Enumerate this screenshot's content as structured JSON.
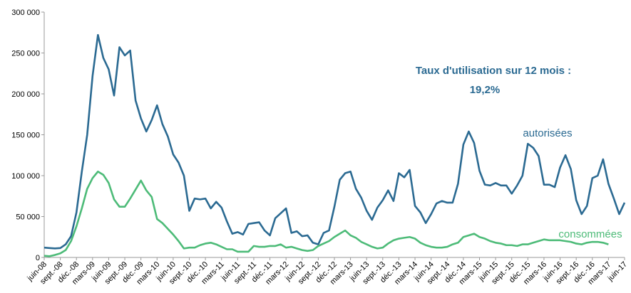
{
  "chart_data": {
    "type": "line",
    "annotation": [
      "Taux d'utilisation sur 12 mois :",
      "19,2%"
    ],
    "categories": [
      "juin-08",
      null,
      null,
      "sept.-08",
      null,
      null,
      "déc.-08",
      null,
      null,
      "mars-09",
      null,
      null,
      "juin-09",
      null,
      null,
      "sept.-09",
      null,
      null,
      "déc.-09",
      null,
      null,
      "mars-10",
      null,
      null,
      "juin-10",
      null,
      null,
      "sept.-10",
      null,
      null,
      "déc.-10",
      null,
      null,
      "mars-11",
      null,
      null,
      "juin-11",
      null,
      null,
      "sept.-11",
      null,
      null,
      "déc.-11",
      null,
      null,
      "mars-12",
      null,
      null,
      "juin-12",
      null,
      null,
      "sept.-12",
      null,
      null,
      "déc.-12",
      null,
      null,
      "mars-13",
      null,
      null,
      "juin-13",
      null,
      null,
      "sept.-13",
      null,
      null,
      "déc.-13",
      null,
      null,
      "mars-14",
      null,
      null,
      "juin-14",
      null,
      null,
      "sept.-14",
      null,
      null,
      "déc.-14",
      null,
      null,
      "mars-15",
      null,
      null,
      "juin-15",
      null,
      null,
      "sept.-15",
      null,
      null,
      "déc.-15",
      null,
      null,
      "mars-16",
      null,
      null,
      "juin-16",
      null,
      null,
      "sept.-16",
      null,
      null,
      "déc.-16",
      null,
      null,
      "mars-17",
      null,
      null,
      "juin-17"
    ],
    "series": [
      {
        "name": "autorisées",
        "color": "#2b6a92",
        "values": [
          12000,
          11500,
          11000,
          11500,
          16000,
          26000,
          55000,
          105000,
          150000,
          222000,
          272000,
          244000,
          230000,
          198000,
          257000,
          247000,
          253000,
          192000,
          170000,
          154000,
          168000,
          186000,
          163000,
          148000,
          126000,
          116000,
          100000,
          57000,
          72000,
          71000,
          72000,
          60000,
          68000,
          61000,
          44000,
          29000,
          31000,
          28000,
          41000,
          42000,
          43000,
          33000,
          27000,
          48000,
          54000,
          60000,
          30000,
          32000,
          26000,
          27000,
          18000,
          16000,
          30000,
          33000,
          62000,
          95000,
          103000,
          105000,
          84000,
          73000,
          57000,
          46000,
          61000,
          70000,
          82000,
          69000,
          103000,
          98000,
          107000,
          63000,
          55000,
          42000,
          53000,
          66000,
          69000,
          67000,
          67000,
          90000,
          138000,
          154000,
          140000,
          106000,
          89000,
          88000,
          91000,
          88000,
          88000,
          78000,
          88000,
          100000,
          139000,
          134000,
          124000,
          89000,
          89000,
          86000,
          110000,
          125000,
          108000,
          70000,
          53000,
          63000,
          97000,
          100000,
          120000,
          90000,
          72000,
          53000,
          67000
        ]
      },
      {
        "name": "consommées",
        "color": "#4dbb78",
        "values": [
          2000,
          1500,
          3000,
          5000,
          9000,
          20000,
          38000,
          60000,
          84000,
          97000,
          105000,
          101000,
          91000,
          71000,
          62000,
          62000,
          72000,
          83000,
          94000,
          82000,
          74000,
          47000,
          42000,
          35000,
          28000,
          20000,
          11000,
          12000,
          12000,
          15000,
          17000,
          18000,
          16000,
          13000,
          10000,
          10000,
          7000,
          7000,
          7000,
          14000,
          13000,
          13000,
          14000,
          14000,
          16000,
          12000,
          13000,
          11000,
          9000,
          8000,
          9000,
          14000,
          17000,
          20000,
          25000,
          29000,
          33000,
          27000,
          24000,
          19000,
          16000,
          13000,
          11000,
          12000,
          17000,
          21000,
          23000,
          24000,
          25000,
          23000,
          18000,
          15000,
          13000,
          12000,
          12000,
          13000,
          16000,
          18000,
          25000,
          27000,
          29000,
          25000,
          23000,
          20000,
          18000,
          17000,
          15000,
          15000,
          14000,
          16000,
          16000,
          18000,
          20000,
          22000,
          21000,
          21000,
          21000,
          20000,
          19000,
          17000,
          16000,
          18000,
          19000,
          19000,
          18000,
          16000,
          null,
          null,
          null
        ]
      }
    ],
    "ylim": [
      0,
      300000
    ],
    "yticks": [
      0,
      {
        "value": 50000,
        "label": "50 000"
      },
      {
        "value": 100000,
        "label": "100 000"
      },
      {
        "value": 150000,
        "label": "150 000"
      },
      {
        "value": 200000,
        "label": "200 000"
      },
      {
        "value": 250000,
        "label": "250 000"
      },
      {
        "value": 300000,
        "label": "300 000"
      }
    ],
    "grid": false
  }
}
